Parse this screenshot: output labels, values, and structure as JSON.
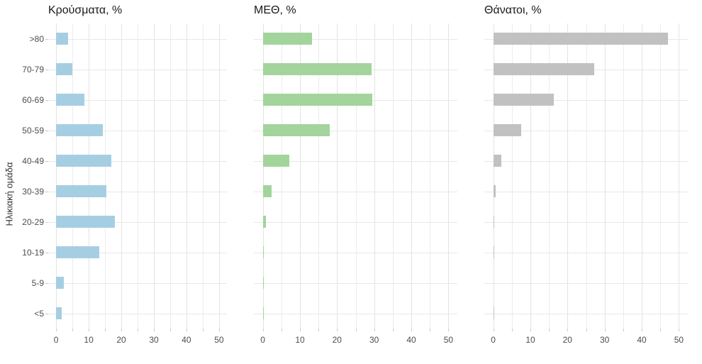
{
  "chart_data": {
    "type": "bar",
    "orientation": "horizontal",
    "ylabel": "Ηλικιακή ομάδα",
    "categories_top_to_bottom": [
      ">80",
      "70-79",
      "60-69",
      "50-59",
      "40-49",
      "30-39",
      "20-29",
      "10-19",
      "5-9",
      "<5"
    ],
    "xlim": [
      0,
      50
    ],
    "x_major_ticks": [
      0,
      10,
      20,
      30,
      40,
      50
    ],
    "x_minor_tick_step": 5,
    "grid": true,
    "legend": "none",
    "series": [
      {
        "name": "Κρούσματα, %",
        "color": "#a6cee3",
        "values": [
          3.7,
          5.1,
          8.6,
          14.4,
          17.0,
          15.4,
          18.1,
          13.2,
          2.4,
          1.7
        ]
      },
      {
        "name": "ΜΕΘ, %",
        "color": "#a2d49c",
        "values": [
          13.3,
          29.3,
          29.5,
          18.1,
          7.1,
          2.4,
          0.8,
          0.2,
          0.1,
          0.1
        ]
      },
      {
        "name": "Θάνατοι, %",
        "color": "#c1c1c1",
        "values": [
          47.1,
          27.2,
          16.4,
          7.5,
          2.1,
          0.7,
          0.2,
          0.2,
          0.0,
          0.2
        ]
      }
    ]
  },
  "style": {
    "grid_major_color": "#e3e3e3",
    "grid_minor_color": "#ececec",
    "tick_color": "#c9c9c9",
    "axis_text_color": "#4d4d4d",
    "title_color": "#1a1a1a"
  }
}
